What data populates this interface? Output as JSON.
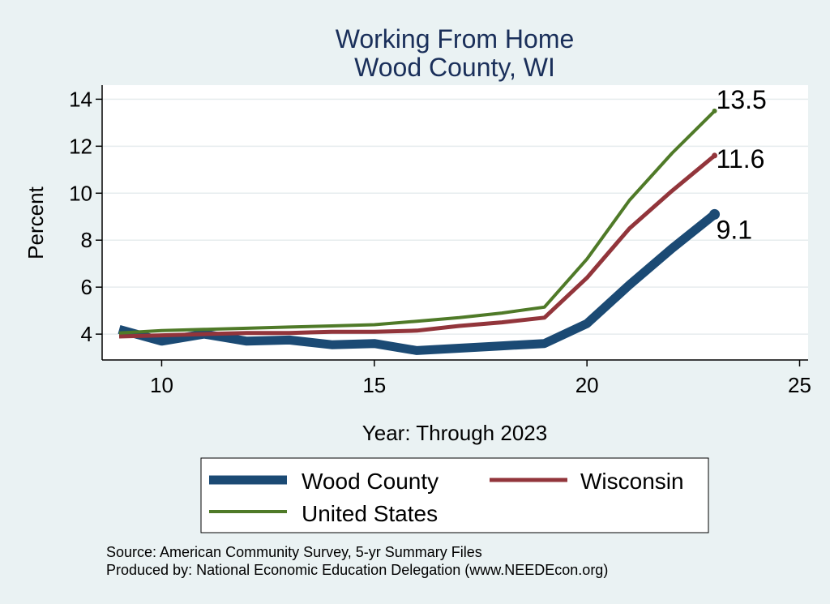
{
  "chart_data": {
    "type": "line",
    "title": [
      "Working From Home",
      "Wood County, WI"
    ],
    "xlabel": "Year: Through 2023",
    "ylabel": "Percent",
    "xlim": [
      8.6,
      25.2
    ],
    "ylim": [
      2.9,
      14.6
    ],
    "xticks": [
      10,
      15,
      20,
      25
    ],
    "yticks": [
      4,
      6,
      8,
      10,
      12,
      14
    ],
    "grid": true,
    "legend_position": "bottom",
    "series": [
      {
        "name": "Wood County",
        "color": "#1b4a74",
        "stroke": "thick",
        "x": [
          9,
          10,
          11,
          12,
          13,
          14,
          15,
          16,
          17,
          18,
          19,
          20,
          21,
          22,
          23
        ],
        "y": [
          4.2,
          3.7,
          4.0,
          3.7,
          3.75,
          3.55,
          3.6,
          3.3,
          3.4,
          3.5,
          3.6,
          4.45,
          6.1,
          7.65,
          9.1
        ],
        "end_label": "9.1"
      },
      {
        "name": "Wisconsin",
        "color": "#92353b",
        "stroke": "medium",
        "x": [
          9,
          10,
          11,
          12,
          13,
          14,
          15,
          16,
          17,
          18,
          19,
          20,
          21,
          22,
          23
        ],
        "y": [
          3.9,
          3.95,
          4.0,
          4.05,
          4.05,
          4.1,
          4.1,
          4.15,
          4.35,
          4.5,
          4.7,
          6.4,
          8.5,
          10.1,
          11.6
        ],
        "end_label": "11.6"
      },
      {
        "name": "United States",
        "color": "#4f7a28",
        "stroke": "thin",
        "x": [
          9,
          10,
          11,
          12,
          13,
          14,
          15,
          16,
          17,
          18,
          19,
          20,
          21,
          22,
          23
        ],
        "y": [
          4.05,
          4.15,
          4.2,
          4.25,
          4.3,
          4.35,
          4.4,
          4.55,
          4.7,
          4.9,
          5.15,
          7.2,
          9.7,
          11.7,
          13.5
        ],
        "end_label": "13.5"
      }
    ]
  },
  "notes": {
    "source": "Source: American Community Survey, 5-yr Summary Files",
    "produced_by": "Produced by: National Economic Education Delegation (www.NEEDEcon.org)"
  }
}
